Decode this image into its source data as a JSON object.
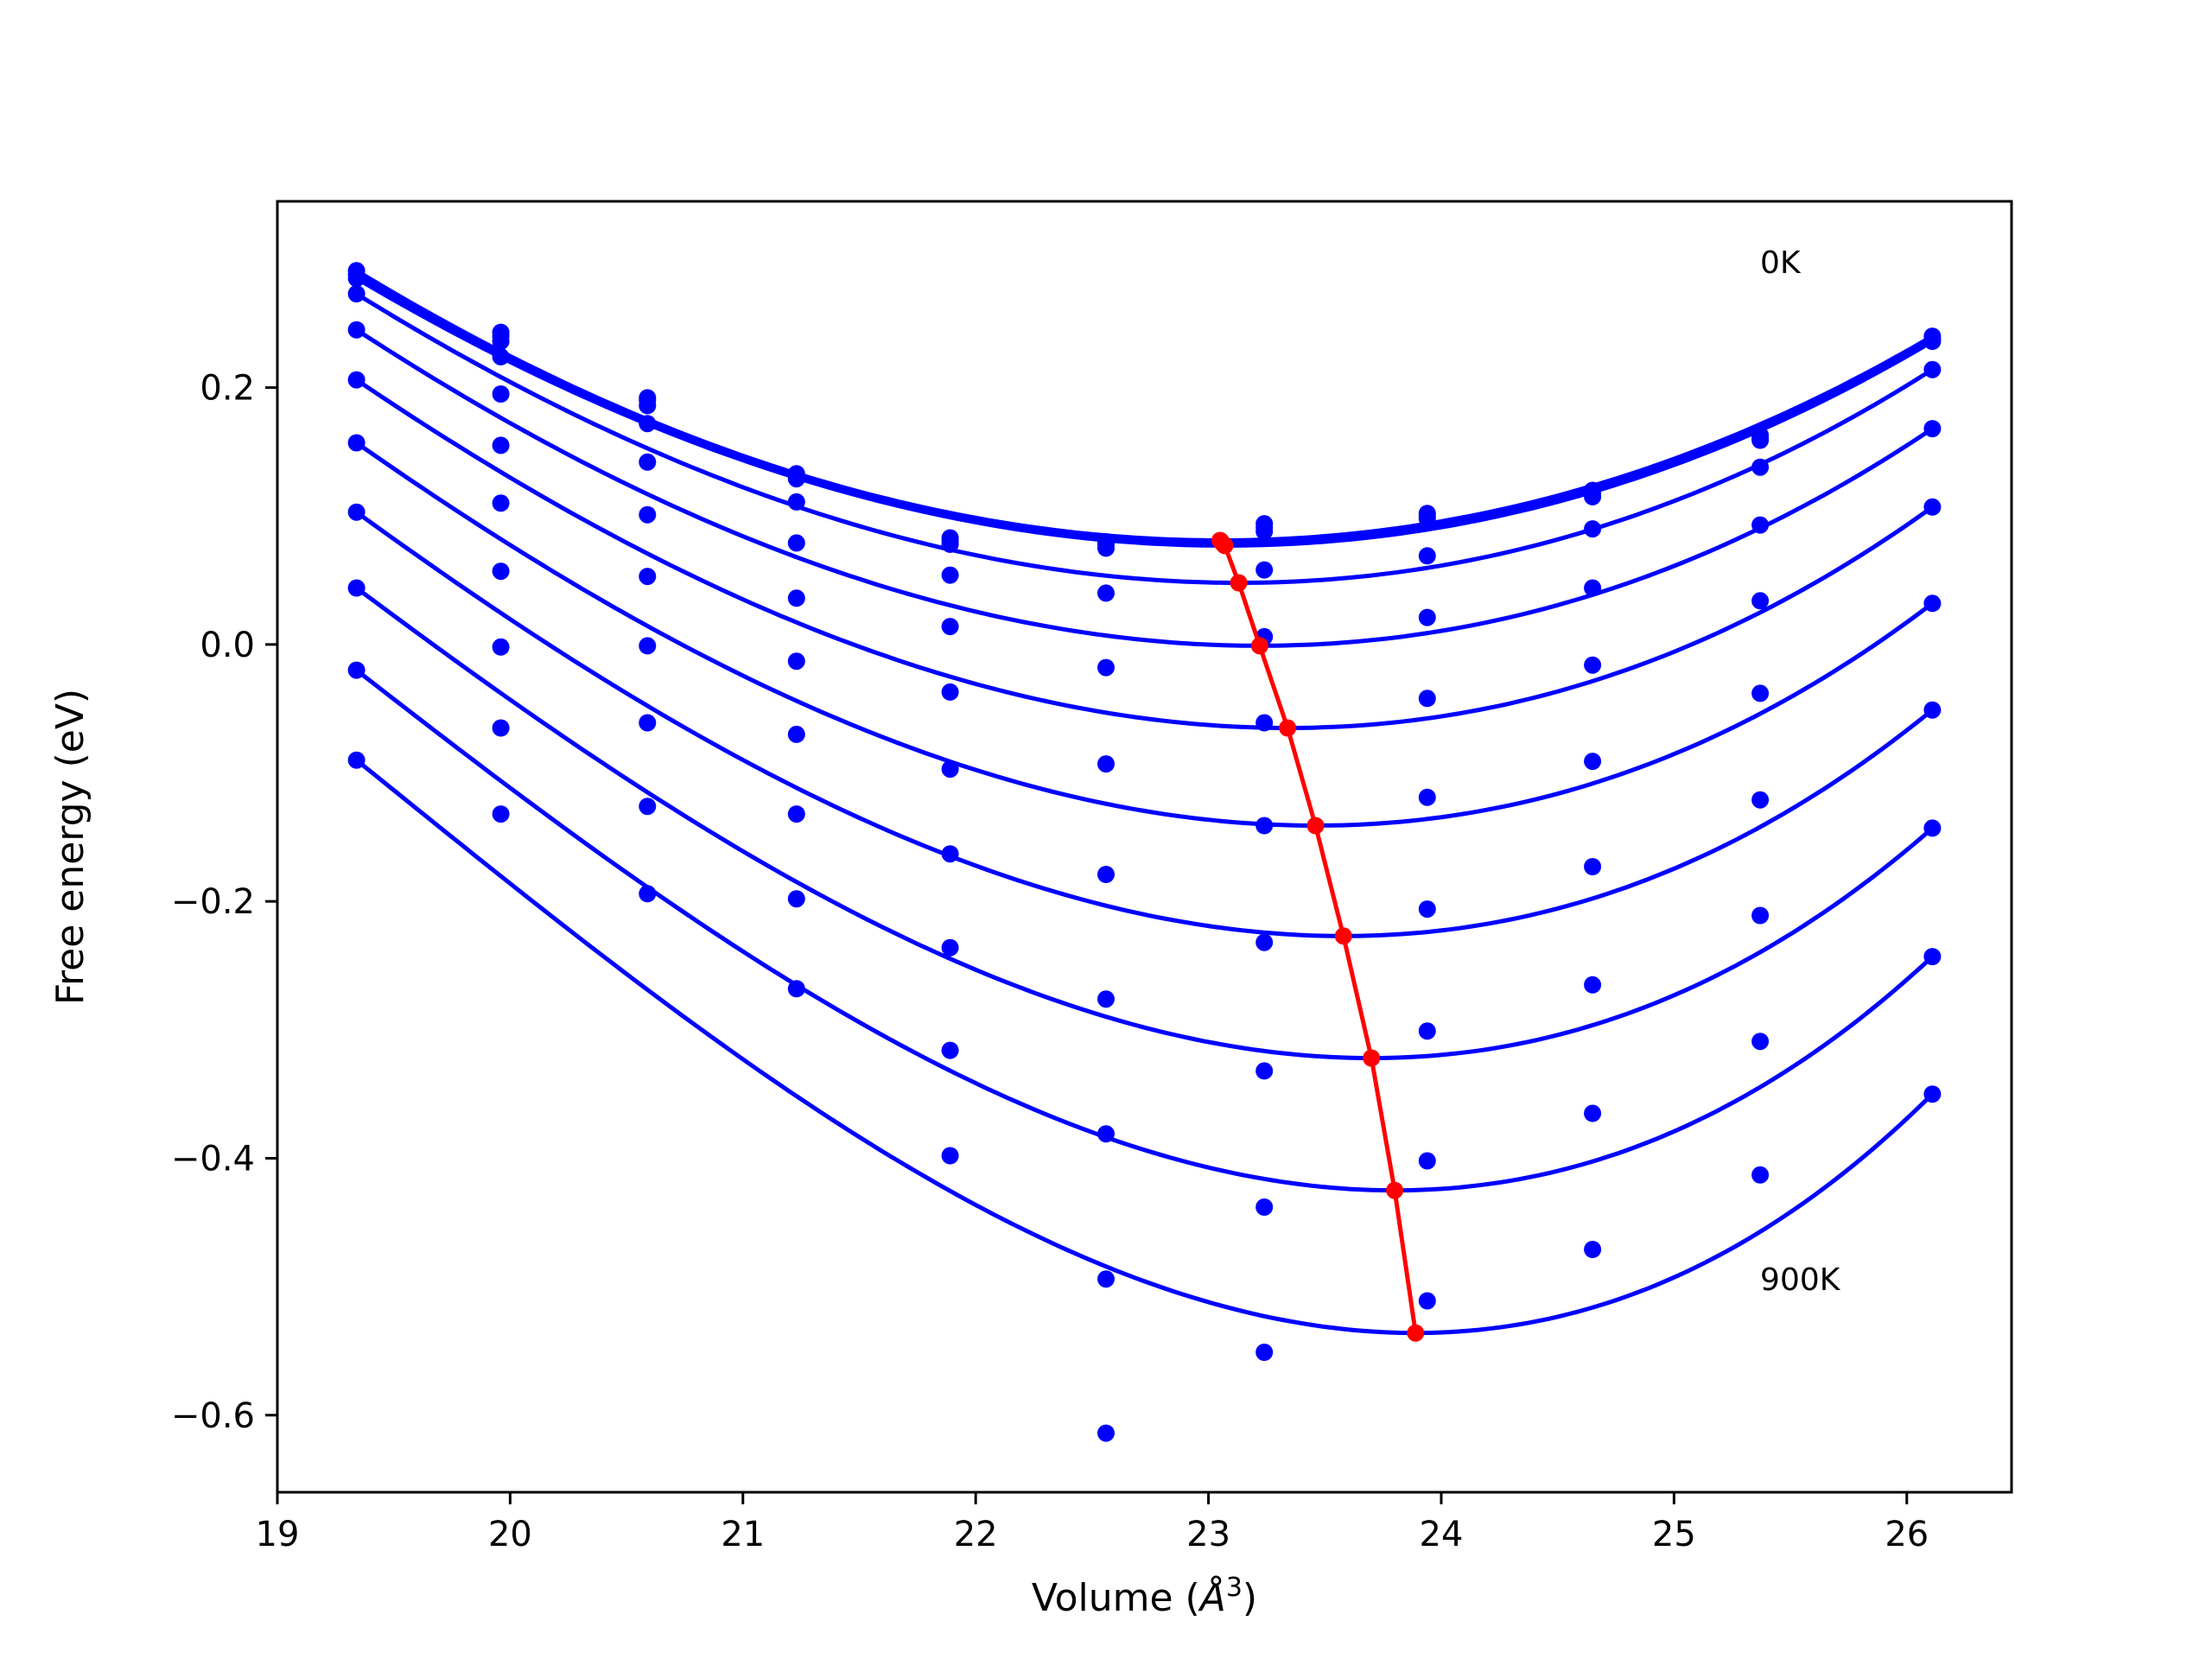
{
  "chart_data": {
    "type": "line",
    "title": "",
    "xlabel": "Volume (",
    "xlabel_unit_symbol": "Å",
    "xlabel_unit_exponent": "3",
    "xlabel_suffix": ")",
    "ylabel": "Free energy (eV)",
    "xlim": [
      19.0,
      26.45
    ],
    "ylim": [
      -0.66,
      0.345
    ],
    "x_ticks": [
      19,
      20,
      21,
      22,
      23,
      24,
      25,
      26
    ],
    "y_ticks": [
      0.2,
      0.0,
      -0.2,
      -0.4,
      -0.6
    ],
    "y_tick_labels": [
      "0.2",
      "0.0",
      "−0.2",
      "−0.4",
      "−0.6"
    ],
    "grid": false,
    "colors": {
      "curves": "#0000ff",
      "minimum_path": "#ff0000"
    },
    "volumes": [
      19.34,
      19.96,
      20.59,
      21.23,
      21.89,
      22.56,
      23.24,
      23.94,
      24.65,
      25.37,
      26.11
    ],
    "series": [
      {
        "min_v": 23.05,
        "min_f": 0.081,
        "points": [
          0.291,
          0.243,
          0.192,
          0.133,
          0.083,
          0.08,
          0.094,
          0.102,
          0.12,
          0.163,
          0.24
        ]
      },
      {
        "min_v": 23.06,
        "min_f": 0.079,
        "points": [
          0.288,
          0.24,
          0.19,
          0.131,
          0.081,
          0.078,
          0.091,
          0.1,
          0.118,
          0.161,
          0.238
        ]
      },
      {
        "min_v": 23.07,
        "min_f": 0.077,
        "points": [
          0.285,
          0.236,
          0.186,
          0.129,
          0.078,
          0.075,
          0.088,
          0.098,
          0.115,
          0.159,
          0.236
        ]
      },
      {
        "min_v": 23.13,
        "min_f": 0.048,
        "points": [
          0.273,
          0.224,
          0.172,
          0.111,
          0.054,
          0.04,
          0.058,
          0.069,
          0.09,
          0.138,
          0.214
        ]
      },
      {
        "min_v": 23.22,
        "min_f": -0.001,
        "points": [
          0.245,
          0.195,
          0.142,
          0.079,
          0.014,
          -0.018,
          0.006,
          0.021,
          0.044,
          0.093,
          0.168
        ]
      },
      {
        "min_v": 23.34,
        "min_f": -0.065,
        "points": [
          0.206,
          0.155,
          0.101,
          0.036,
          -0.037,
          -0.093,
          -0.061,
          -0.042,
          -0.016,
          0.034,
          0.107
        ]
      },
      {
        "min_v": 23.46,
        "min_f": -0.141,
        "points": [
          0.157,
          0.11,
          0.053,
          -0.013,
          -0.097,
          -0.179,
          -0.141,
          -0.119,
          -0.091,
          -0.038,
          0.032
        ]
      },
      {
        "min_v": 23.58,
        "min_f": -0.227,
        "points": [
          0.103,
          0.057,
          -0.001,
          -0.07,
          -0.163,
          -0.276,
          -0.232,
          -0.206,
          -0.173,
          -0.121,
          -0.051
        ]
      },
      {
        "min_v": 23.7,
        "min_f": -0.322,
        "points": [
          0.044,
          -0.002,
          -0.061,
          -0.132,
          -0.236,
          -0.381,
          -0.332,
          -0.301,
          -0.265,
          -0.211,
          -0.143
        ]
      },
      {
        "min_v": 23.8,
        "min_f": -0.425,
        "points": [
          -0.02,
          -0.065,
          -0.126,
          -0.198,
          -0.316,
          -0.494,
          -0.438,
          -0.402,
          -0.365,
          -0.309,
          -0.243
        ]
      },
      {
        "min_v": 23.89,
        "min_f": -0.536,
        "points": [
          -0.09,
          -0.132,
          -0.194,
          -0.268,
          -0.398,
          -0.614,
          -0.551,
          -0.511,
          -0.471,
          -0.413,
          -0.35
        ]
      }
    ],
    "annotations": [
      {
        "text": "0K",
        "x": 25.37,
        "y": 0.298
      },
      {
        "text": "900K",
        "x": 25.37,
        "y": -0.494
      }
    ]
  }
}
